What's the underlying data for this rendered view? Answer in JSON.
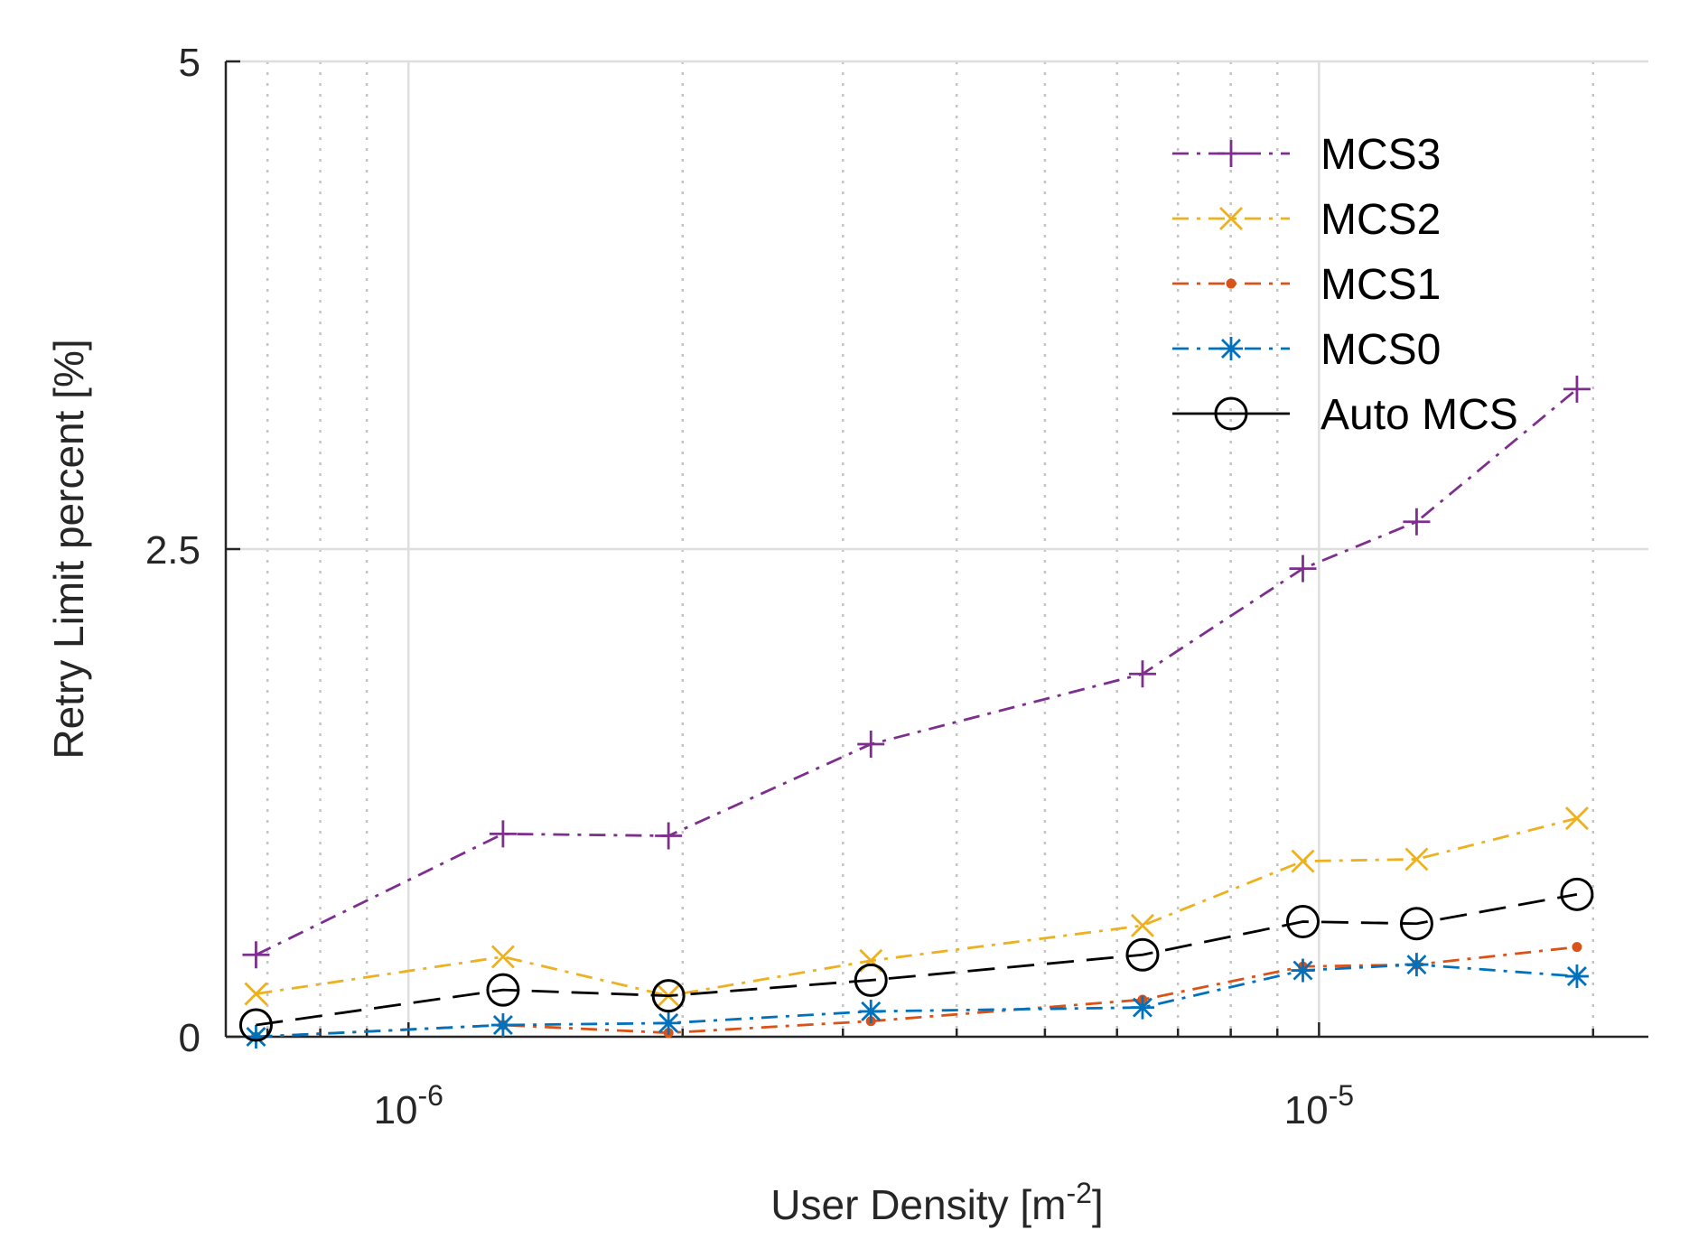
{
  "chart_data": {
    "type": "line",
    "title": "",
    "xlabel": "User Density [m",
    "xlabel_sup": "-2",
    "xlabel_end": "]",
    "ylabel": "Retry Limit percent [%]",
    "xscale": "log",
    "xlim": [
      6.3e-07,
      2.3e-05
    ],
    "ylim": [
      0,
      5
    ],
    "grid": true,
    "legend_position": "top-right",
    "yticks": [
      {
        "value": 0,
        "label": "0"
      },
      {
        "value": 2.5,
        "label": "2.5"
      },
      {
        "value": 5,
        "label": "5"
      }
    ],
    "xticks": [
      {
        "value": 1e-06,
        "base": "10",
        "exp": "-6"
      },
      {
        "value": 1e-05,
        "base": "10",
        "exp": "-5"
      }
    ],
    "x": [
      6.8e-07,
      1.27e-06,
      1.93e-06,
      3.22e-06,
      6.4e-06,
      9.6e-06,
      1.28e-05,
      1.92e-05
    ],
    "series": [
      {
        "name": "MCS3",
        "color": "#7E2F8E",
        "dash": "18,9,4,9",
        "marker": "plus",
        "values": [
          0.42,
          1.04,
          1.03,
          1.5,
          1.86,
          2.4,
          2.64,
          3.32
        ]
      },
      {
        "name": "MCS2",
        "color": "#EDB120",
        "dash": "18,9,4,9",
        "marker": "x",
        "values": [
          0.22,
          0.41,
          0.21,
          0.39,
          0.57,
          0.9,
          0.91,
          1.12
        ]
      },
      {
        "name": "MCS1",
        "color": "#D95319",
        "dash": "18,9,4,9",
        "marker": "dot",
        "values": [
          0.0,
          0.06,
          0.02,
          0.08,
          0.19,
          0.36,
          0.37,
          0.46
        ]
      },
      {
        "name": "MCS0",
        "color": "#0072BD",
        "dash": "18,9,4,9",
        "marker": "star",
        "values": [
          0.0,
          0.06,
          0.07,
          0.13,
          0.15,
          0.34,
          0.37,
          0.31
        ]
      },
      {
        "name": "Auto MCS",
        "color": "#000000",
        "dash": "30,14",
        "marker": "circle",
        "values": [
          0.06,
          0.24,
          0.21,
          0.29,
          0.42,
          0.59,
          0.58,
          0.73
        ]
      }
    ]
  }
}
